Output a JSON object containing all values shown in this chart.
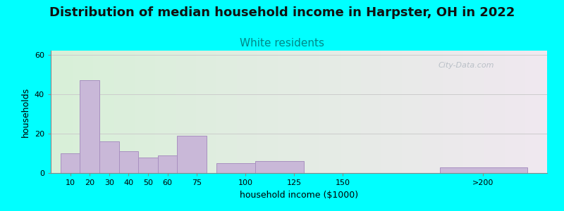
{
  "title": "Distribution of median household income in Harpster, OH in 2022",
  "subtitle": "White residents",
  "xlabel": "household income ($1000)",
  "ylabel": "households",
  "background_color": "#00FFFF",
  "plot_bg_gradient_left": "#d8f0d8",
  "plot_bg_gradient_right": "#f0e8f0",
  "bar_color": "#c9b8d8",
  "bar_edge_color": "#a890c0",
  "values": [
    10,
    47,
    16,
    11,
    8,
    9,
    19,
    5,
    6,
    0,
    3
  ],
  "bar_lefts": [
    5,
    15,
    25,
    35,
    45,
    55,
    65,
    85,
    105,
    137,
    200
  ],
  "bar_widths": [
    10,
    10,
    10,
    10,
    10,
    10,
    15,
    20,
    25,
    25,
    45
  ],
  "xlim": [
    0,
    255
  ],
  "ylim": [
    0,
    62
  ],
  "yticks": [
    0,
    20,
    40,
    60
  ],
  "xtick_labels": [
    "10",
    "20",
    "30",
    "40",
    "50",
    "60",
    "75",
    "100",
    "125",
    "150",
    ">200"
  ],
  "xtick_positions": [
    10,
    20,
    30,
    40,
    50,
    60,
    75,
    100,
    125,
    150,
    222
  ],
  "title_fontsize": 13,
  "subtitle_fontsize": 11,
  "subtitle_color": "#008888",
  "axis_label_fontsize": 9,
  "tick_fontsize": 8,
  "watermark_text": "City-Data.com",
  "watermark_color": "#b0b8c0",
  "title_color": "#111111"
}
